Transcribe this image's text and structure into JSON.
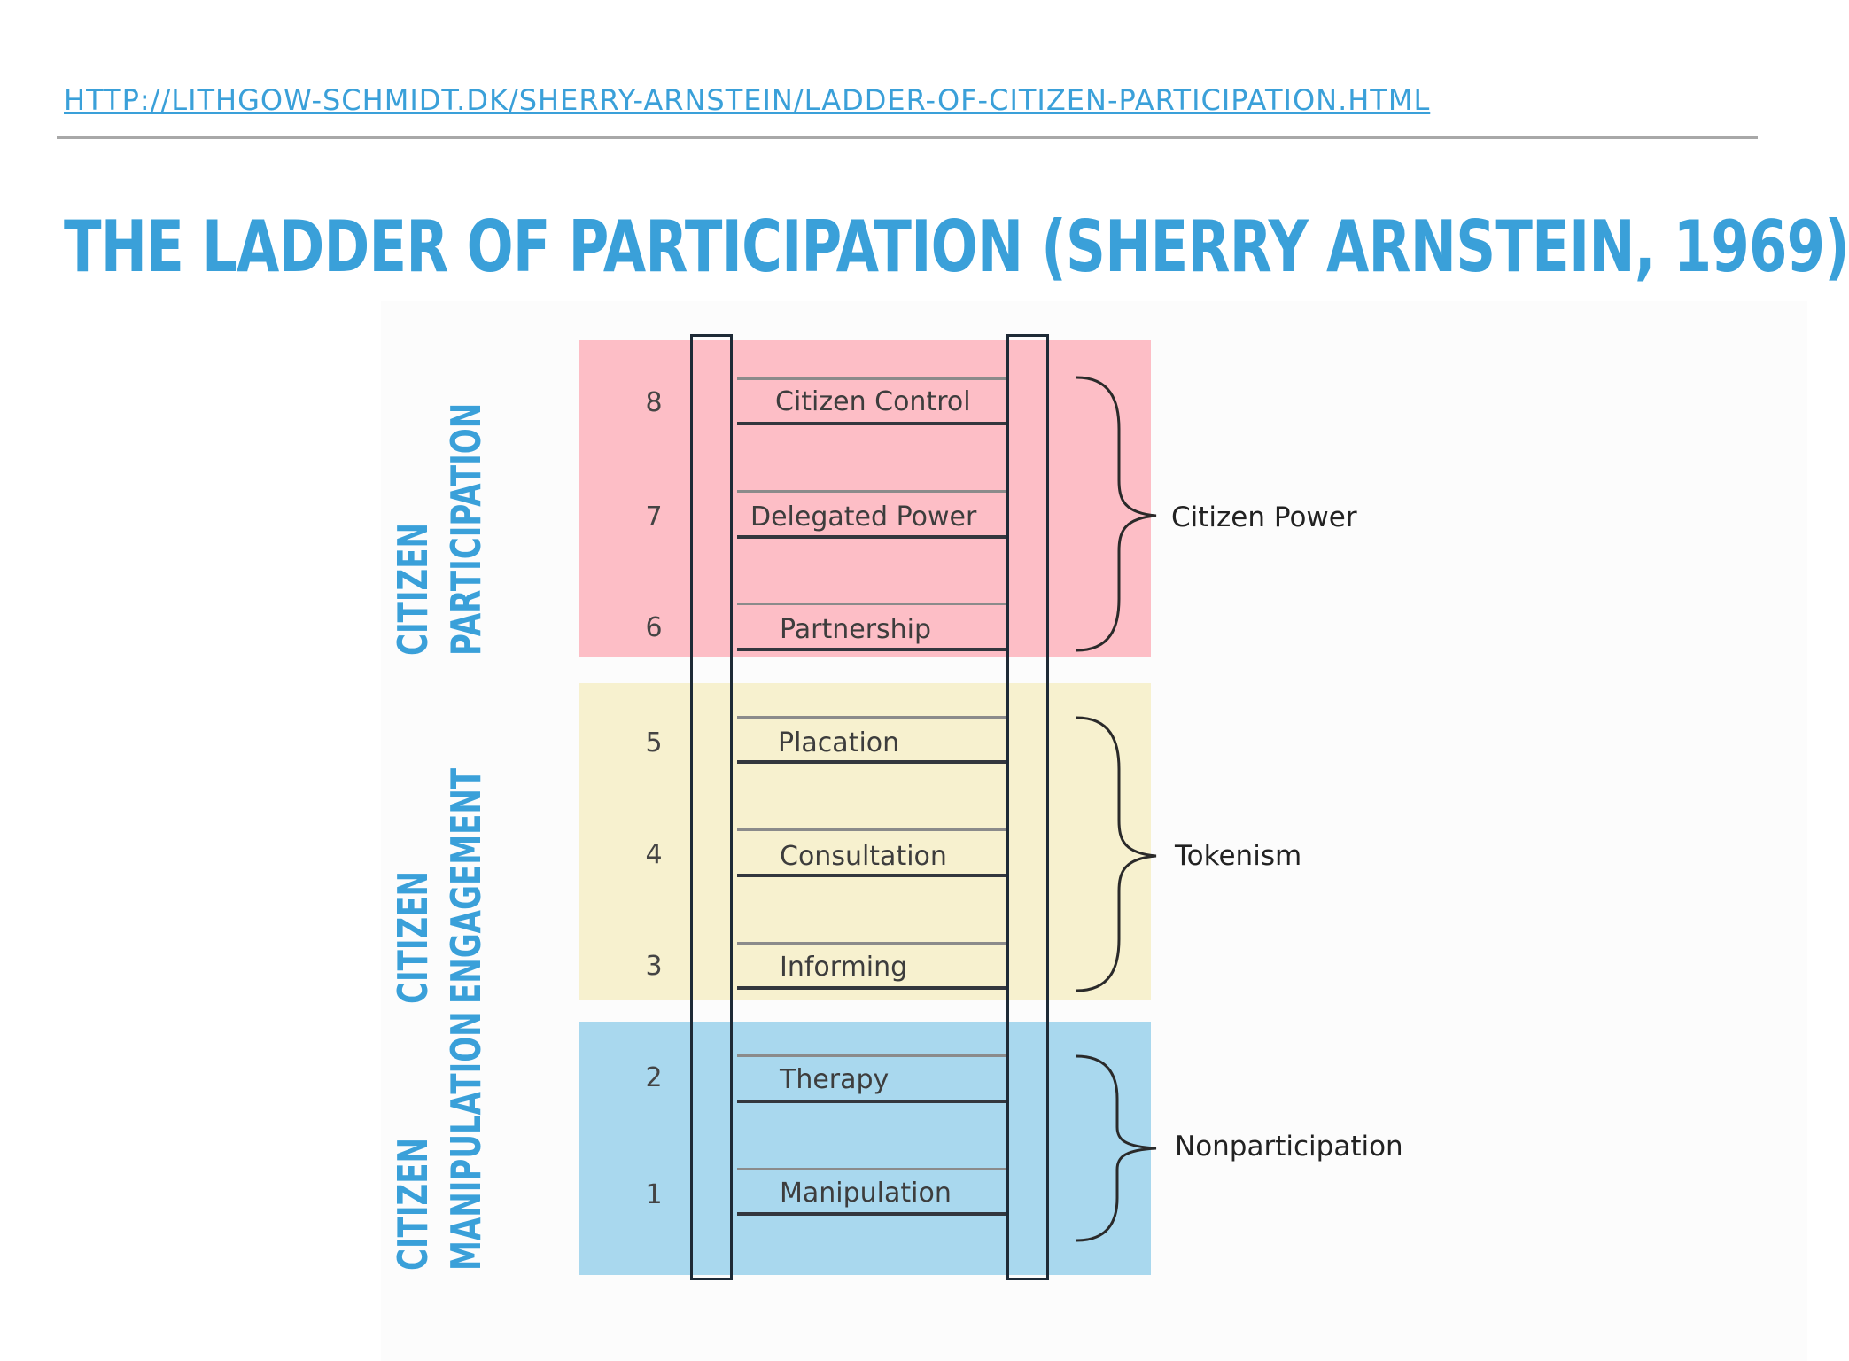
{
  "header": {
    "url": "HTTP://LITHGOW-SCHMIDT.DK/SHERRY-ARNSTEIN/LADDER-OF-CITIZEN-PARTICIPATION.HTML",
    "title": "THE LADDER OF PARTICIPATION (SHERRY ARNSTEIN, 1969)"
  },
  "side_labels": {
    "participation": [
      "CITIZEN",
      "PARTICIPATION"
    ],
    "engagement": [
      "CITIZEN",
      "ENGAGEMENT"
    ],
    "manipulation": [
      "CITIZEN",
      "MANIPULATION"
    ]
  },
  "ladder": {
    "rungs": [
      {
        "number": "8",
        "label": "Citizen Control"
      },
      {
        "number": "7",
        "label": "Delegated Power"
      },
      {
        "number": "6",
        "label": "Partnership"
      },
      {
        "number": "5",
        "label": "Placation"
      },
      {
        "number": "4",
        "label": "Consultation"
      },
      {
        "number": "3",
        "label": "Informing"
      },
      {
        "number": "2",
        "label": "Therapy"
      },
      {
        "number": "1",
        "label": "Manipulation"
      }
    ],
    "groups": {
      "power": "Citizen Power",
      "tokenism": "Tokenism",
      "nonparticipation": "Nonparticipation"
    }
  },
  "colors": {
    "accent": "#3aa0d9",
    "citizen_power_band": "#fdbec6",
    "tokenism_band": "#f7f1cf",
    "nonparticipation_band": "#a9d8ee"
  }
}
